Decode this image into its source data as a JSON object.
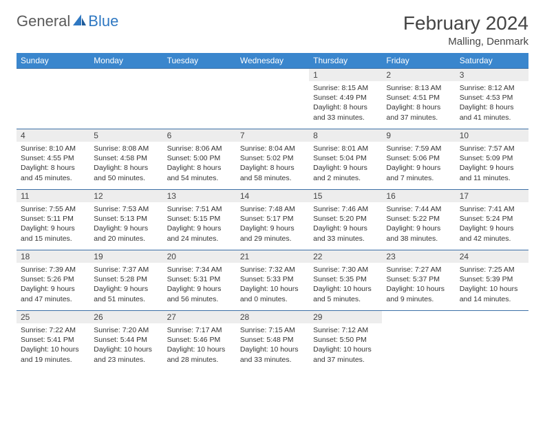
{
  "logo": {
    "general": "General",
    "blue": "Blue"
  },
  "title": "February 2024",
  "location": "Malling, Denmark",
  "header_color": "#3a86cd",
  "grid_border_color": "#3a6ea5",
  "daynum_bg": "#ededed",
  "columns": [
    "Sunday",
    "Monday",
    "Tuesday",
    "Wednesday",
    "Thursday",
    "Friday",
    "Saturday"
  ],
  "weeks": [
    [
      null,
      null,
      null,
      null,
      {
        "n": "1",
        "sr": "8:15 AM",
        "ss": "4:49 PM",
        "dl": "8 hours and 33 minutes."
      },
      {
        "n": "2",
        "sr": "8:13 AM",
        "ss": "4:51 PM",
        "dl": "8 hours and 37 minutes."
      },
      {
        "n": "3",
        "sr": "8:12 AM",
        "ss": "4:53 PM",
        "dl": "8 hours and 41 minutes."
      }
    ],
    [
      {
        "n": "4",
        "sr": "8:10 AM",
        "ss": "4:55 PM",
        "dl": "8 hours and 45 minutes."
      },
      {
        "n": "5",
        "sr": "8:08 AM",
        "ss": "4:58 PM",
        "dl": "8 hours and 50 minutes."
      },
      {
        "n": "6",
        "sr": "8:06 AM",
        "ss": "5:00 PM",
        "dl": "8 hours and 54 minutes."
      },
      {
        "n": "7",
        "sr": "8:04 AM",
        "ss": "5:02 PM",
        "dl": "8 hours and 58 minutes."
      },
      {
        "n": "8",
        "sr": "8:01 AM",
        "ss": "5:04 PM",
        "dl": "9 hours and 2 minutes."
      },
      {
        "n": "9",
        "sr": "7:59 AM",
        "ss": "5:06 PM",
        "dl": "9 hours and 7 minutes."
      },
      {
        "n": "10",
        "sr": "7:57 AM",
        "ss": "5:09 PM",
        "dl": "9 hours and 11 minutes."
      }
    ],
    [
      {
        "n": "11",
        "sr": "7:55 AM",
        "ss": "5:11 PM",
        "dl": "9 hours and 15 minutes."
      },
      {
        "n": "12",
        "sr": "7:53 AM",
        "ss": "5:13 PM",
        "dl": "9 hours and 20 minutes."
      },
      {
        "n": "13",
        "sr": "7:51 AM",
        "ss": "5:15 PM",
        "dl": "9 hours and 24 minutes."
      },
      {
        "n": "14",
        "sr": "7:48 AM",
        "ss": "5:17 PM",
        "dl": "9 hours and 29 minutes."
      },
      {
        "n": "15",
        "sr": "7:46 AM",
        "ss": "5:20 PM",
        "dl": "9 hours and 33 minutes."
      },
      {
        "n": "16",
        "sr": "7:44 AM",
        "ss": "5:22 PM",
        "dl": "9 hours and 38 minutes."
      },
      {
        "n": "17",
        "sr": "7:41 AM",
        "ss": "5:24 PM",
        "dl": "9 hours and 42 minutes."
      }
    ],
    [
      {
        "n": "18",
        "sr": "7:39 AM",
        "ss": "5:26 PM",
        "dl": "9 hours and 47 minutes."
      },
      {
        "n": "19",
        "sr": "7:37 AM",
        "ss": "5:28 PM",
        "dl": "9 hours and 51 minutes."
      },
      {
        "n": "20",
        "sr": "7:34 AM",
        "ss": "5:31 PM",
        "dl": "9 hours and 56 minutes."
      },
      {
        "n": "21",
        "sr": "7:32 AM",
        "ss": "5:33 PM",
        "dl": "10 hours and 0 minutes."
      },
      {
        "n": "22",
        "sr": "7:30 AM",
        "ss": "5:35 PM",
        "dl": "10 hours and 5 minutes."
      },
      {
        "n": "23",
        "sr": "7:27 AM",
        "ss": "5:37 PM",
        "dl": "10 hours and 9 minutes."
      },
      {
        "n": "24",
        "sr": "7:25 AM",
        "ss": "5:39 PM",
        "dl": "10 hours and 14 minutes."
      }
    ],
    [
      {
        "n": "25",
        "sr": "7:22 AM",
        "ss": "5:41 PM",
        "dl": "10 hours and 19 minutes."
      },
      {
        "n": "26",
        "sr": "7:20 AM",
        "ss": "5:44 PM",
        "dl": "10 hours and 23 minutes."
      },
      {
        "n": "27",
        "sr": "7:17 AM",
        "ss": "5:46 PM",
        "dl": "10 hours and 28 minutes."
      },
      {
        "n": "28",
        "sr": "7:15 AM",
        "ss": "5:48 PM",
        "dl": "10 hours and 33 minutes."
      },
      {
        "n": "29",
        "sr": "7:12 AM",
        "ss": "5:50 PM",
        "dl": "10 hours and 37 minutes."
      },
      null,
      null
    ]
  ],
  "labels": {
    "sunrise": "Sunrise:",
    "sunset": "Sunset:",
    "daylight": "Daylight:"
  }
}
